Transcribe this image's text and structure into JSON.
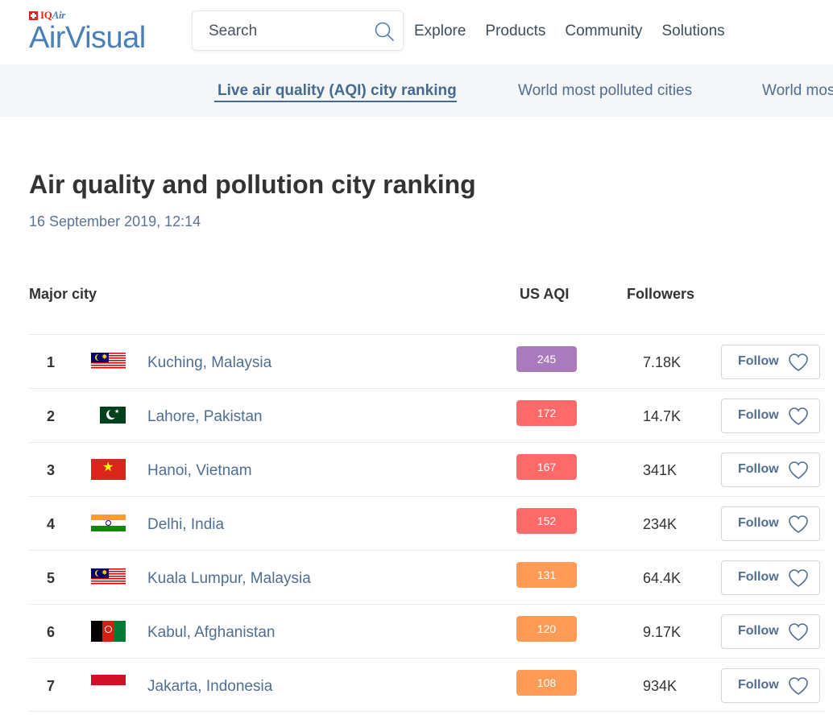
{
  "header": {
    "logo_small": "IQAir",
    "logo_small_a": "IQ",
    "logo_small_b": "Air",
    "brand": "AirVisual",
    "search_placeholder": "Search",
    "nav": [
      "Explore",
      "Products",
      "Community",
      "Solutions"
    ]
  },
  "subnav": {
    "items": [
      {
        "label": "Live air quality (AQI) city ranking",
        "active": true
      },
      {
        "label": "World most polluted cities",
        "active": false
      },
      {
        "label": "World most polluted countries",
        "active": false
      }
    ]
  },
  "main": {
    "title": "Air quality and pollution city ranking",
    "timestamp": "16 September 2019, 12:14"
  },
  "table": {
    "headers": {
      "city": "Major city",
      "aqi": "US AQI",
      "followers": "Followers"
    },
    "follow_label": "Follow",
    "rows": [
      {
        "rank": "1",
        "flag": "malaysia-flag-icon",
        "city": "Kuching, Malaysia",
        "aqi": "245",
        "aqi_color": "#a97abc",
        "followers": "7.18K"
      },
      {
        "rank": "2",
        "flag": "pakistan-flag-icon",
        "city": "Lahore, Pakistan",
        "aqi": "172",
        "aqi_color": "#fe6a69",
        "followers": "14.7K"
      },
      {
        "rank": "3",
        "flag": "vietnam-flag-icon",
        "city": "Hanoi, Vietnam",
        "aqi": "167",
        "aqi_color": "#fe6a69",
        "followers": "341K"
      },
      {
        "rank": "4",
        "flag": "india-flag-icon",
        "city": "Delhi, India",
        "aqi": "152",
        "aqi_color": "#fe6a69",
        "followers": "234K"
      },
      {
        "rank": "5",
        "flag": "malaysia-flag-icon",
        "city": "Kuala Lumpur, Malaysia",
        "aqi": "131",
        "aqi_color": "#fe9b57",
        "followers": "64.4K"
      },
      {
        "rank": "6",
        "flag": "afghanistan-flag-icon",
        "city": "Kabul, Afghanistan",
        "aqi": "120",
        "aqi_color": "#fe9b57",
        "followers": "9.17K"
      },
      {
        "rank": "7",
        "flag": "indonesia-flag-icon",
        "city": "Jakarta, Indonesia",
        "aqi": "108",
        "aqi_color": "#fe9b57",
        "followers": "934K"
      }
    ]
  },
  "colors": {
    "brand_blue": "#4a7fb8",
    "link_blue": "#4f6e91",
    "aqi_very_unhealthy": "#a97abc",
    "aqi_unhealthy": "#fe6a69",
    "aqi_unhealthy_sensitive": "#fe9b57"
  }
}
